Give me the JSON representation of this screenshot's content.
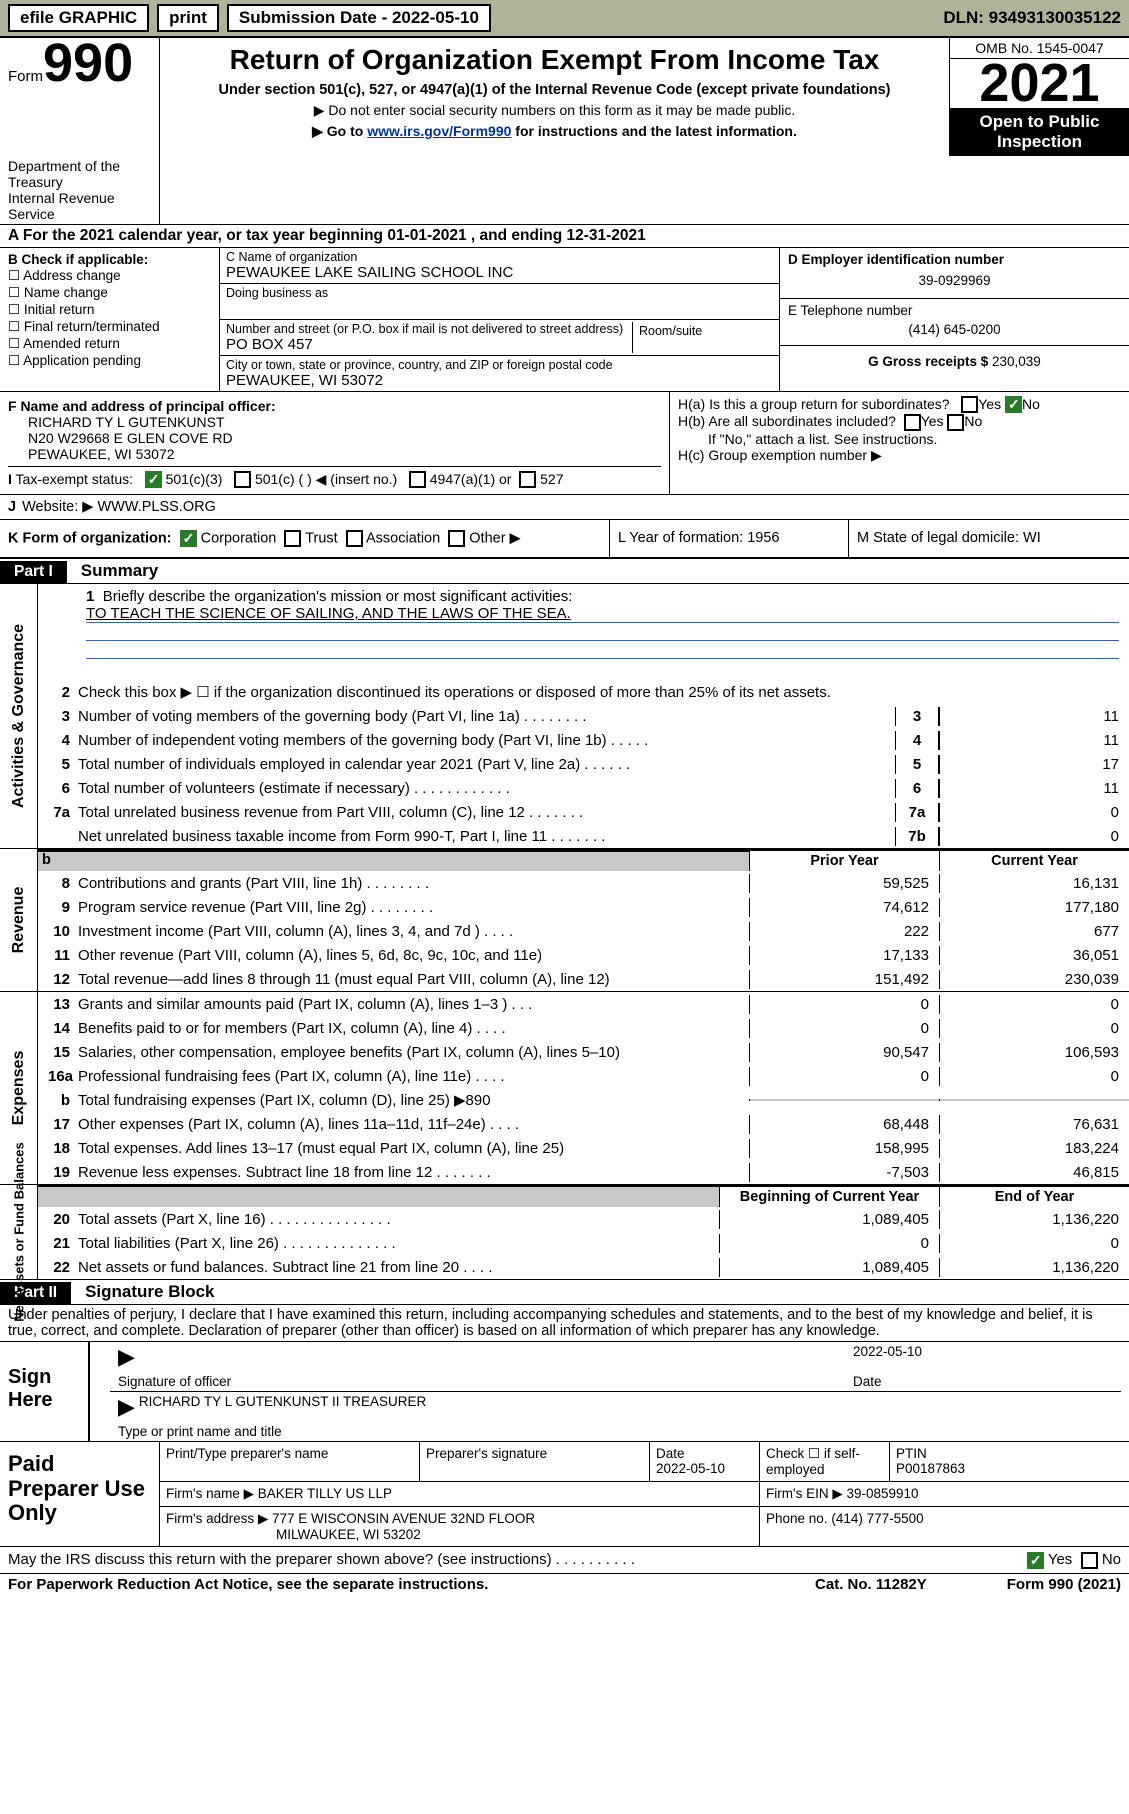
{
  "topbar": {
    "efile": "efile GRAPHIC",
    "print": "print",
    "sub_label": "Submission Date - 2022-05-10",
    "dln": "DLN: 93493130035122"
  },
  "header": {
    "form_prefix": "Form",
    "form_num": "990",
    "title": "Return of Organization Exempt From Income Tax",
    "subtitle": "Under section 501(c), 527, or 4947(a)(1) of the Internal Revenue Code (except private foundations)",
    "note1": "▶ Do not enter social security numbers on this form as it may be made public.",
    "note2_pre": "▶ Go to ",
    "note2_link": "www.irs.gov/Form990",
    "note2_post": " for instructions and the latest information.",
    "omb": "OMB No. 1545-0047",
    "year": "2021",
    "open": "Open to Public Inspection",
    "dept": "Department of the Treasury",
    "irs": "Internal Revenue Service"
  },
  "row_a": "A For the 2021 calendar year, or tax year beginning 01-01-2021  , and ending 12-31-2021",
  "section_b": {
    "title": "B Check if applicable:",
    "opts": [
      "☐ Address change",
      "☐ Name change",
      "☐ Initial return",
      "☐ Final return/terminated",
      "☐ Amended return",
      "☐ Application pending"
    ]
  },
  "section_c": {
    "name_lbl": "C Name of organization",
    "name": "PEWAUKEE LAKE SAILING SCHOOL INC",
    "dba_lbl": "Doing business as",
    "addr_lbl": "Number and street (or P.O. box if mail is not delivered to street address)",
    "room_lbl": "Room/suite",
    "addr": "PO BOX 457",
    "city_lbl": "City or town, state or province, country, and ZIP or foreign postal code",
    "city": "PEWAUKEE, WI  53072"
  },
  "section_d": {
    "lbl": "D Employer identification number",
    "val": "39-0929969"
  },
  "section_e": {
    "lbl": "E Telephone number",
    "val": "(414) 645-0200"
  },
  "section_g": {
    "lbl": "G Gross receipts $",
    "val": "230,039"
  },
  "section_f": {
    "lbl": "F Name and address of principal officer:",
    "name": "RICHARD TY L GUTENKUNST",
    "addr1": "N20 W29668 E GLEN COVE RD",
    "addr2": "PEWAUKEE, WI  53072"
  },
  "section_h": {
    "ha": "H(a)  Is this a group return for subordinates?",
    "ha_yes": "Yes",
    "ha_no": "No",
    "hb": "H(b)  Are all subordinates included?",
    "hb_note": "If \"No,\" attach a list. See instructions.",
    "hc": "H(c)  Group exemption number ▶"
  },
  "row_i": {
    "lbl": "I",
    "txt": "Tax-exempt status:",
    "c1": "501(c)(3)",
    "c2": "501(c) (  ) ◀ (insert no.)",
    "c3": "4947(a)(1) or",
    "c4": "527"
  },
  "row_j": {
    "lbl": "J",
    "txt": "Website: ▶",
    "val": "WWW.PLSS.ORG"
  },
  "row_k": {
    "txt": "K Form of organization:",
    "c1": "Corporation",
    "c2": "Trust",
    "c3": "Association",
    "c4": "Other ▶",
    "l": "L Year of formation: 1956",
    "m": "M State of legal domicile: WI"
  },
  "part1": {
    "hdr": "Part I",
    "title": "Summary"
  },
  "summary": {
    "q1": "Briefly describe the organization's mission or most significant activities:",
    "mission": "TO TEACH THE SCIENCE OF SAILING, AND THE LAWS OF THE SEA.",
    "q2": "Check this box ▶ ☐  if the organization discontinued its operations or disposed of more than 25% of its net assets.",
    "lines_gov": [
      {
        "n": "3",
        "t": "Number of voting members of the governing body (Part VI, line 1a)  .   .   .   .   .   .   .   .",
        "tag": "3",
        "v": "11"
      },
      {
        "n": "4",
        "t": "Number of independent voting members of the governing body (Part VI, line 1b)  .   .   .   .   .",
        "tag": "4",
        "v": "11"
      },
      {
        "n": "5",
        "t": "Total number of individuals employed in calendar year 2021 (Part V, line 2a)  .   .   .   .   .   .",
        "tag": "5",
        "v": "17"
      },
      {
        "n": "6",
        "t": "Total number of volunteers (estimate if necessary)   .   .   .   .   .   .   .   .   .   .   .   .",
        "tag": "6",
        "v": "11"
      },
      {
        "n": "7a",
        "t": "Total unrelated business revenue from Part VIII, column (C), line 12   .   .   .   .   .   .   .",
        "tag": "7a",
        "v": "0"
      },
      {
        "n": "",
        "t": "Net unrelated business taxable income from Form 990-T, Part I, line 11   .   .   .   .   .   .   .",
        "tag": "7b",
        "v": "0"
      }
    ],
    "py": "Prior Year",
    "cy": "Current Year",
    "rev": [
      {
        "n": "8",
        "t": "Contributions and grants (Part VIII, line 1h)   .   .   .   .   .   .   .   .",
        "p": "59,525",
        "c": "16,131"
      },
      {
        "n": "9",
        "t": "Program service revenue (Part VIII, line 2g)   .   .   .   .   .   .   .   .",
        "p": "74,612",
        "c": "177,180"
      },
      {
        "n": "10",
        "t": "Investment income (Part VIII, column (A), lines 3, 4, and 7d )  .   .   .   .",
        "p": "222",
        "c": "677"
      },
      {
        "n": "11",
        "t": "Other revenue (Part VIII, column (A), lines 5, 6d, 8c, 9c, 10c, and 11e)",
        "p": "17,133",
        "c": "36,051"
      },
      {
        "n": "12",
        "t": "Total revenue—add lines 8 through 11 (must equal Part VIII, column (A), line 12)",
        "p": "151,492",
        "c": "230,039"
      }
    ],
    "exp": [
      {
        "n": "13",
        "t": "Grants and similar amounts paid (Part IX, column (A), lines 1–3 )  .   .   .",
        "p": "0",
        "c": "0"
      },
      {
        "n": "14",
        "t": "Benefits paid to or for members (Part IX, column (A), line 4)  .   .   .   .",
        "p": "0",
        "c": "0"
      },
      {
        "n": "15",
        "t": "Salaries, other compensation, employee benefits (Part IX, column (A), lines 5–10)",
        "p": "90,547",
        "c": "106,593"
      },
      {
        "n": "16a",
        "t": "Professional fundraising fees (Part IX, column (A), line 11e)   .   .   .   .",
        "p": "0",
        "c": "0"
      },
      {
        "n": "b",
        "t": "Total fundraising expenses (Part IX, column (D), line 25) ▶890",
        "p": "",
        "c": "",
        "shade": true
      },
      {
        "n": "17",
        "t": "Other expenses (Part IX, column (A), lines 11a–11d, 11f–24e)  .   .   .   .",
        "p": "68,448",
        "c": "76,631"
      },
      {
        "n": "18",
        "t": "Total expenses. Add lines 13–17 (must equal Part IX, column (A), line 25)",
        "p": "158,995",
        "c": "183,224"
      },
      {
        "n": "19",
        "t": "Revenue less expenses. Subtract line 18 from line 12   .   .   .   .   .   .   .",
        "p": "-7,503",
        "c": "46,815"
      }
    ],
    "by": "Beginning of Current Year",
    "ey": "End of Year",
    "net": [
      {
        "n": "20",
        "t": "Total assets (Part X, line 16)  .   .   .   .   .   .   .   .   .   .   .   .   .   .   .",
        "p": "1,089,405",
        "c": "1,136,220"
      },
      {
        "n": "21",
        "t": "Total liabilities (Part X, line 26)  .   .   .   .   .   .   .   .   .   .   .   .   .   .",
        "p": "0",
        "c": "0"
      },
      {
        "n": "22",
        "t": "Net assets or fund balances. Subtract line 21 from line 20   .   .   .   .",
        "p": "1,089,405",
        "c": "1,136,220"
      }
    ]
  },
  "sidelabels": {
    "gov": "Activities & Governance",
    "rev": "Revenue",
    "exp": "Expenses",
    "net": "Net Assets or\nFund Balances"
  },
  "part2": {
    "hdr": "Part II",
    "title": "Signature Block"
  },
  "declaration": "Under penalties of perjury, I declare that I have examined this return, including accompanying schedules and statements, and to the best of my knowledge and belief, it is true, correct, and complete. Declaration of preparer (other than officer) is based on all information of which preparer has any knowledge.",
  "sign": {
    "here": "Sign Here",
    "sig_lbl": "Signature of officer",
    "date_lbl": "Date",
    "date": "2022-05-10",
    "name": "RICHARD TY L GUTENKUNST II TREASURER",
    "name_lbl": "Type or print name and title"
  },
  "paid": {
    "title": "Paid Preparer Use Only",
    "h1": "Print/Type preparer's name",
    "h2": "Preparer's signature",
    "h3": "Date",
    "h3v": "2022-05-10",
    "h4": "Check ☐ if self-employed",
    "h5": "PTIN",
    "h5v": "P00187863",
    "firm_lbl": "Firm's name     ▶",
    "firm": "BAKER TILLY US LLP",
    "ein_lbl": "Firm's EIN ▶",
    "ein": "39-0859910",
    "addr_lbl": "Firm's address ▶",
    "addr1": "777 E WISCONSIN AVENUE 32ND FLOOR",
    "addr2": "MILWAUKEE, WI  53202",
    "ph_lbl": "Phone no.",
    "ph": "(414) 777-5500"
  },
  "footer": {
    "q": "May the IRS discuss this return with the preparer shown above? (see instructions)   .   .   .   .   .   .   .   .   .   .",
    "yes": "Yes",
    "no": "No",
    "paperwork": "For Paperwork Reduction Act Notice, see the separate instructions.",
    "cat": "Cat. No. 11282Y",
    "form": "Form 990 (2021)"
  }
}
